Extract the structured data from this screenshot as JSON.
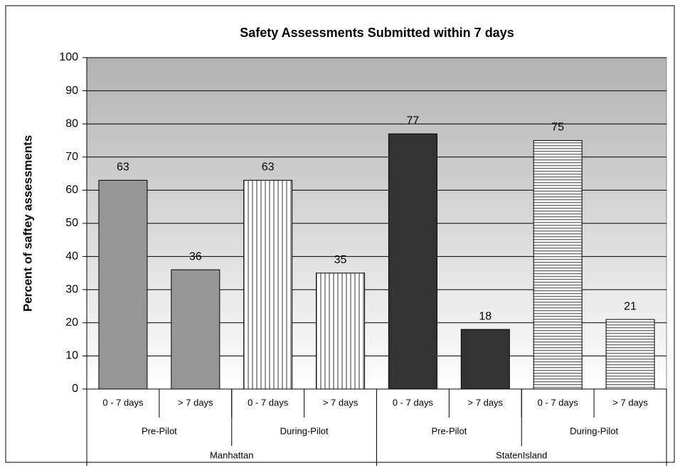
{
  "chart_data": {
    "type": "bar",
    "title": "Safety Assessments Submitted within 7 days",
    "y_label": "Percent of saftey assessments",
    "categories": [
      "0 - 7 days",
      "> 7 days",
      "0 - 7 days",
      "> 7 days",
      "0 - 7 days",
      "> 7 days",
      "0 - 7 days",
      "> 7 days"
    ],
    "subgroups": [
      "Pre-Pilot",
      "During-Pilot",
      "Pre-Pilot",
      "During-Pilot"
    ],
    "groups": [
      "Manhattan",
      "StatenIsland"
    ],
    "values": [
      63,
      36,
      63,
      35,
      77,
      18,
      75,
      21
    ],
    "colors": [
      "#969696",
      "#969696",
      "#ffffff",
      "#ffffff",
      "#333333",
      "#333333",
      "#ffffff",
      "#ffffff"
    ],
    "patterns": [
      "solid",
      "solid",
      "vertical",
      "vertical",
      "solid",
      "solid",
      "horizontal",
      "horizontal"
    ],
    "ylim": [
      0,
      100
    ],
    "yticks": [
      0,
      10,
      20,
      30,
      40,
      50,
      60,
      70,
      80,
      90,
      100
    ],
    "grid": true
  }
}
